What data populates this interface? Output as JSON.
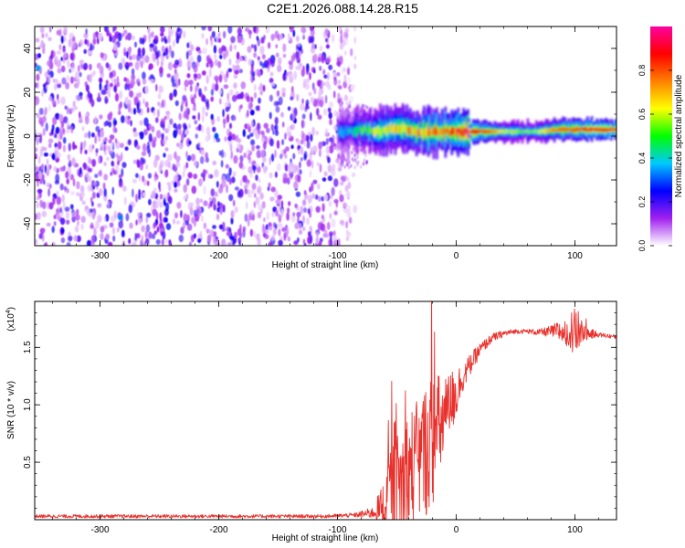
{
  "title": "C2E1.2026.088.14.28.R15",
  "colors": {
    "snr_line": "#e8312c",
    "axis": "#000000",
    "background": "#ffffff"
  },
  "chart_data": [
    {
      "type": "heatmap",
      "title": "C2E1.2026.088.14.28.R15",
      "xlabel": "Height of straight line (km)",
      "ylabel": "Frequency (Hz)",
      "xlim": [
        -355,
        135
      ],
      "ylim": [
        -50,
        50
      ],
      "x_ticks": [
        -300,
        -200,
        -100,
        0,
        100
      ],
      "x_tick_labels": [
        "-300",
        "-200",
        "-100",
        "0",
        "100"
      ],
      "y_ticks": [
        -40,
        -20,
        0,
        20,
        40
      ],
      "y_tick_labels": [
        "-40",
        "-20",
        "0",
        "20",
        "40"
      ],
      "colorbar": {
        "label": "Normalized spectral amplitude",
        "range": [
          0,
          1
        ],
        "ticks": [
          0.0,
          0.2,
          0.4,
          0.6,
          0.8
        ],
        "tick_labels": [
          "0.0",
          "0.2",
          "0.4",
          "0.6",
          "0.8"
        ],
        "stops": [
          "#ffffff",
          "#a020f0",
          "#0000ff",
          "#00c8ff",
          "#00ff00",
          "#ffff00",
          "#ff8000",
          "#ff0000",
          "#ff00a0"
        ]
      },
      "regions": [
        {
          "name": "noise",
          "x_range": [
            -355,
            -85
          ],
          "freq_range": [
            -50,
            50
          ],
          "amplitude": [
            0.0,
            0.25
          ]
        },
        {
          "name": "signal",
          "x_range": [
            -100,
            135
          ],
          "center_freq_hz": 2,
          "bandwidth_hz": 3,
          "amplitude": [
            0.4,
            1.0
          ]
        }
      ],
      "signal_track": [
        {
          "x": -95,
          "f": 2,
          "a": 0.3
        },
        {
          "x": -80,
          "f": 3,
          "a": 0.45
        },
        {
          "x": -65,
          "f": 2,
          "a": 0.55
        },
        {
          "x": -50,
          "f": 4,
          "a": 0.6
        },
        {
          "x": -35,
          "f": 2,
          "a": 0.65
        },
        {
          "x": -20,
          "f": 2,
          "a": 0.7
        },
        {
          "x": -5,
          "f": 2,
          "a": 0.75
        },
        {
          "x": 10,
          "f": 2,
          "a": 0.9
        },
        {
          "x": 25,
          "f": 2,
          "a": 0.85
        },
        {
          "x": 40,
          "f": 2,
          "a": 0.6
        },
        {
          "x": 55,
          "f": 2,
          "a": 0.55
        },
        {
          "x": 70,
          "f": 2,
          "a": 0.6
        },
        {
          "x": 85,
          "f": 3,
          "a": 0.8
        },
        {
          "x": 100,
          "f": 3,
          "a": 0.85
        },
        {
          "x": 115,
          "f": 3,
          "a": 0.9
        },
        {
          "x": 130,
          "f": 3,
          "a": 0.9
        }
      ]
    },
    {
      "type": "line",
      "title": "",
      "xlabel": "Height of straight line (km)",
      "ylabel": "SNR (10 * v/v)",
      "y_scale_label": "(x10",
      "y_scale_exponent": "4",
      "y_scale_close": ")",
      "xlim": [
        -355,
        135
      ],
      "ylim": [
        0,
        1.9
      ],
      "x_ticks": [
        -300,
        -200,
        -100,
        0,
        100
      ],
      "x_tick_labels": [
        "-300",
        "-200",
        "-100",
        "0",
        "100"
      ],
      "y_ticks": [
        0.5,
        1.0,
        1.5
      ],
      "y_tick_labels": [
        "0.5",
        "1.0",
        "1.5"
      ],
      "series": [
        {
          "name": "SNR",
          "x": [
            -355,
            -300,
            -250,
            -200,
            -150,
            -110,
            -85,
            -70,
            -62,
            -55,
            -50,
            -45,
            -40,
            -35,
            -30,
            -25,
            -20,
            -15,
            -10,
            -5,
            0,
            5,
            10,
            15,
            20,
            30,
            40,
            50,
            60,
            70,
            80,
            90,
            95,
            100,
            105,
            110,
            120,
            135
          ],
          "values": [
            0.03,
            0.03,
            0.03,
            0.03,
            0.03,
            0.03,
            0.04,
            0.06,
            0.12,
            0.28,
            0.3,
            0.35,
            0.4,
            0.45,
            0.55,
            0.62,
            0.7,
            0.78,
            0.88,
            1.0,
            1.12,
            1.22,
            1.32,
            1.4,
            1.48,
            1.58,
            1.62,
            1.64,
            1.64,
            1.63,
            1.64,
            1.64,
            1.66,
            1.62,
            1.65,
            1.62,
            1.61,
            1.59
          ],
          "noise_amplitude": [
            0.015,
            0.015,
            0.015,
            0.015,
            0.015,
            0.015,
            0.02,
            0.05,
            0.2,
            0.4,
            0.45,
            0.5,
            0.6,
            0.55,
            0.55,
            0.6,
            0.6,
            0.5,
            0.35,
            0.3,
            0.25,
            0.12,
            0.1,
            0.08,
            0.06,
            0.04,
            0.03,
            0.02,
            0.02,
            0.03,
            0.05,
            0.12,
            0.18,
            0.22,
            0.15,
            0.06,
            0.02,
            0.02
          ]
        }
      ]
    }
  ]
}
